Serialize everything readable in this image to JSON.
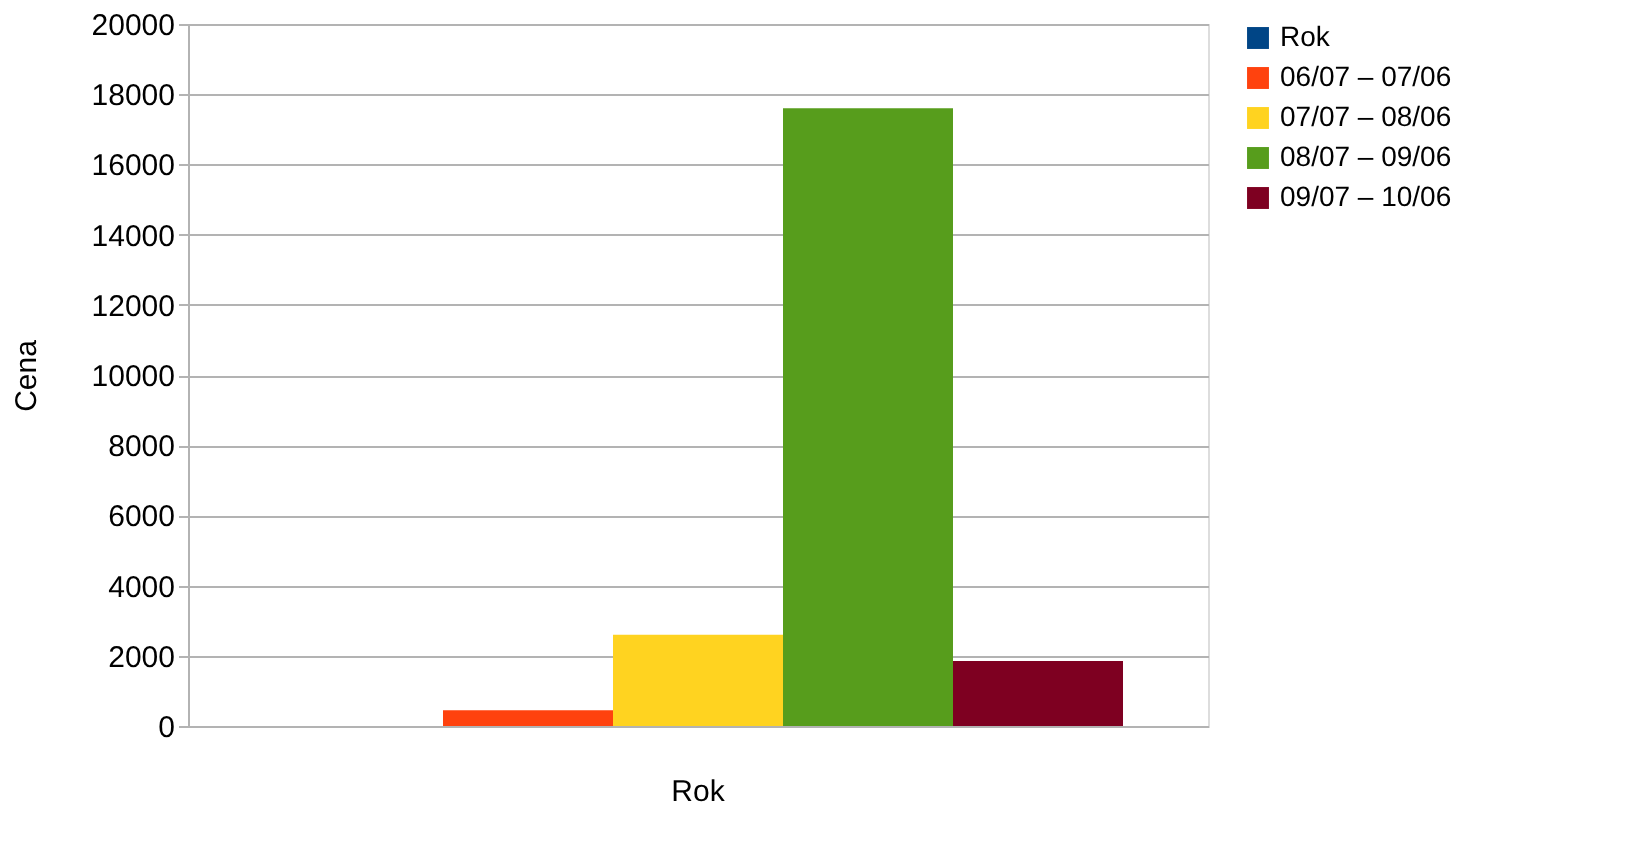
{
  "chart_data": {
    "type": "bar",
    "ylabel": "Cena",
    "categories": [
      "Rok"
    ],
    "series": [
      {
        "name": "Rok",
        "color": "#004586",
        "values": [
          0
        ]
      },
      {
        "name": "06/07 – 07/06",
        "color": "#ff420e",
        "values": [
          450
        ]
      },
      {
        "name": "07/07 – 08/06",
        "color": "#ffd320",
        "values": [
          2600
        ]
      },
      {
        "name": "08/07 – 09/06",
        "color": "#579d1c",
        "values": [
          17600
        ]
      },
      {
        "name": "09/07 – 10/06",
        "color": "#7e0021",
        "values": [
          1850
        ]
      }
    ],
    "ylim": [
      0,
      20000
    ],
    "yticks": [
      0,
      2000,
      4000,
      6000,
      8000,
      10000,
      12000,
      14000,
      16000,
      18000,
      20000
    ],
    "grid": "y",
    "legend": "right"
  }
}
